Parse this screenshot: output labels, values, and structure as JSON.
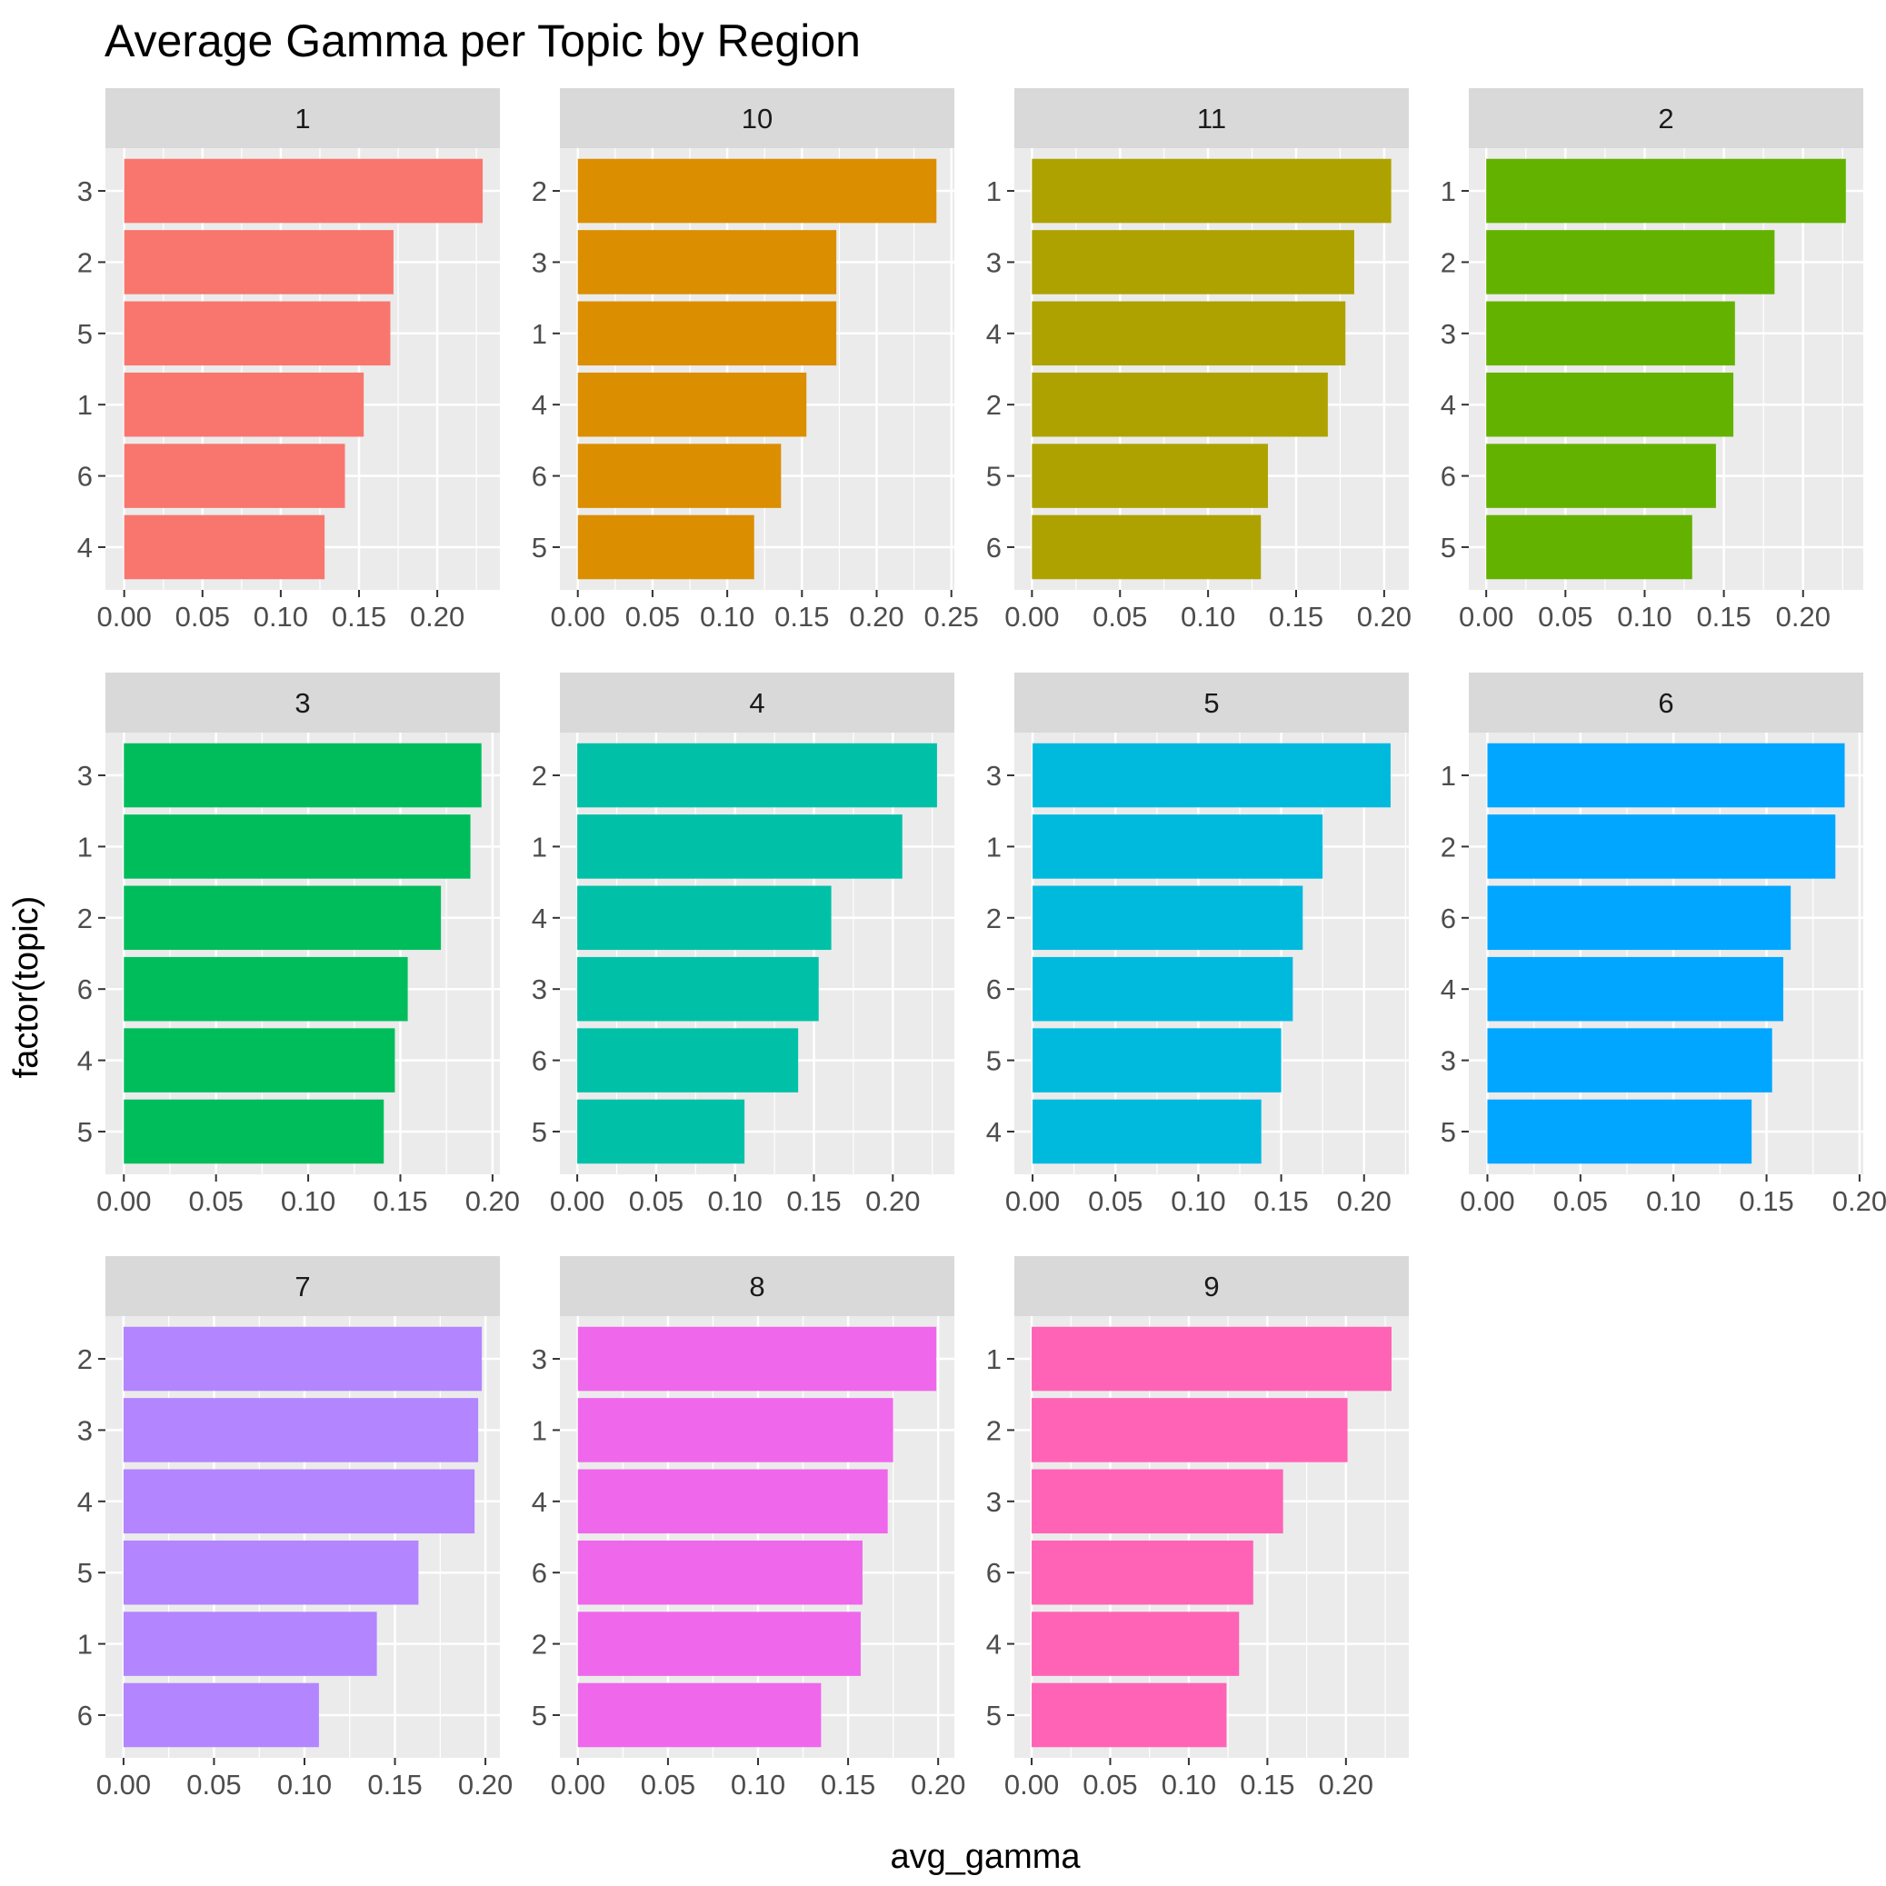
{
  "chart_data": {
    "type": "bar",
    "orientation": "horizontal",
    "title": "Average Gamma per Topic by Region",
    "xlabel": "avg_gamma",
    "ylabel": "factor(topic)",
    "facet_layout": "3 rows x 4 columns, free scales",
    "grid": true,
    "legend": "none",
    "panels": [
      {
        "label": "1",
        "color": "#F8766D",
        "categories": [
          "3",
          "2",
          "5",
          "1",
          "6",
          "4"
        ],
        "values": [
          0.229,
          0.172,
          0.17,
          0.153,
          0.141,
          0.128
        ],
        "xlim": [
          -0.012,
          0.24
        ],
        "xticks": [
          0.0,
          0.05,
          0.1,
          0.15,
          0.2
        ],
        "xtick_labels": [
          "0.00",
          "0.05",
          "0.10",
          "0.15",
          "0.20"
        ]
      },
      {
        "label": "10",
        "color": "#DB8E00",
        "categories": [
          "2",
          "3",
          "1",
          "4",
          "6",
          "5"
        ],
        "values": [
          0.24,
          0.173,
          0.173,
          0.153,
          0.136,
          0.118
        ],
        "xlim": [
          -0.012,
          0.252
        ],
        "xticks": [
          0.0,
          0.05,
          0.1,
          0.15,
          0.2,
          0.25
        ],
        "xtick_labels": [
          "0.00",
          "0.05",
          "0.10",
          "0.15",
          "0.20",
          "0.25"
        ]
      },
      {
        "label": "11",
        "color": "#AEA200",
        "categories": [
          "1",
          "3",
          "4",
          "2",
          "5",
          "6"
        ],
        "values": [
          0.204,
          0.183,
          0.178,
          0.168,
          0.134,
          0.13
        ],
        "xlim": [
          -0.01,
          0.214
        ],
        "xticks": [
          0.0,
          0.05,
          0.1,
          0.15,
          0.2
        ],
        "xtick_labels": [
          "0.00",
          "0.05",
          "0.10",
          "0.15",
          "0.20"
        ]
      },
      {
        "label": "2",
        "color": "#64B200",
        "categories": [
          "1",
          "2",
          "3",
          "4",
          "6",
          "5"
        ],
        "values": [
          0.227,
          0.182,
          0.157,
          0.156,
          0.145,
          0.13
        ],
        "xlim": [
          -0.011,
          0.238
        ],
        "xticks": [
          0.0,
          0.05,
          0.1,
          0.15,
          0.2
        ],
        "xtick_labels": [
          "0.00",
          "0.05",
          "0.10",
          "0.15",
          "0.20"
        ]
      },
      {
        "label": "3",
        "color": "#00BD5C",
        "categories": [
          "3",
          "1",
          "2",
          "6",
          "4",
          "5"
        ],
        "values": [
          0.194,
          0.188,
          0.172,
          0.154,
          0.147,
          0.141
        ],
        "xlim": [
          -0.01,
          0.204
        ],
        "xticks": [
          0.0,
          0.05,
          0.1,
          0.15,
          0.2
        ],
        "xtick_labels": [
          "0.00",
          "0.05",
          "0.10",
          "0.15",
          "0.20"
        ]
      },
      {
        "label": "4",
        "color": "#00C1A7",
        "categories": [
          "2",
          "1",
          "4",
          "3",
          "6",
          "5"
        ],
        "values": [
          0.228,
          0.206,
          0.161,
          0.153,
          0.14,
          0.106
        ],
        "xlim": [
          -0.011,
          0.239
        ],
        "xticks": [
          0.0,
          0.05,
          0.1,
          0.15,
          0.2
        ],
        "xtick_labels": [
          "0.00",
          "0.05",
          "0.10",
          "0.15",
          "0.20"
        ]
      },
      {
        "label": "5",
        "color": "#00BADE",
        "categories": [
          "3",
          "1",
          "2",
          "6",
          "5",
          "4"
        ],
        "values": [
          0.216,
          0.175,
          0.163,
          0.157,
          0.15,
          0.138
        ],
        "xlim": [
          -0.011,
          0.227
        ],
        "xticks": [
          0.0,
          0.05,
          0.1,
          0.15,
          0.2
        ],
        "xtick_labels": [
          "0.00",
          "0.05",
          "0.10",
          "0.15",
          "0.20"
        ]
      },
      {
        "label": "6",
        "color": "#00A6FF",
        "categories": [
          "1",
          "2",
          "6",
          "4",
          "3",
          "5"
        ],
        "values": [
          0.192,
          0.187,
          0.163,
          0.159,
          0.153,
          0.142
        ],
        "xlim": [
          -0.01,
          0.202
        ],
        "xticks": [
          0.0,
          0.05,
          0.1,
          0.15,
          0.2
        ],
        "xtick_labels": [
          "0.00",
          "0.05",
          "0.10",
          "0.15",
          "0.20"
        ]
      },
      {
        "label": "7",
        "color": "#B385FF",
        "categories": [
          "2",
          "3",
          "4",
          "5",
          "1",
          "6"
        ],
        "values": [
          0.198,
          0.196,
          0.194,
          0.163,
          0.14,
          0.108
        ],
        "xlim": [
          -0.01,
          0.208
        ],
        "xticks": [
          0.0,
          0.05,
          0.1,
          0.15,
          0.2
        ],
        "xtick_labels": [
          "0.00",
          "0.05",
          "0.10",
          "0.15",
          "0.20"
        ]
      },
      {
        "label": "8",
        "color": "#EF67EB",
        "categories": [
          "3",
          "1",
          "4",
          "6",
          "2",
          "5"
        ],
        "values": [
          0.199,
          0.175,
          0.172,
          0.158,
          0.157,
          0.135
        ],
        "xlim": [
          -0.01,
          0.209
        ],
        "xticks": [
          0.0,
          0.05,
          0.1,
          0.15,
          0.2
        ],
        "xtick_labels": [
          "0.00",
          "0.05",
          "0.10",
          "0.15",
          "0.20"
        ]
      },
      {
        "label": "9",
        "color": "#FF63B6",
        "categories": [
          "1",
          "2",
          "3",
          "6",
          "4",
          "5"
        ],
        "values": [
          0.229,
          0.201,
          0.16,
          0.141,
          0.132,
          0.124
        ],
        "xlim": [
          -0.011,
          0.24
        ],
        "xticks": [
          0.0,
          0.05,
          0.1,
          0.15,
          0.2
        ],
        "xtick_labels": [
          "0.00",
          "0.05",
          "0.10",
          "0.15",
          "0.20"
        ]
      }
    ]
  }
}
